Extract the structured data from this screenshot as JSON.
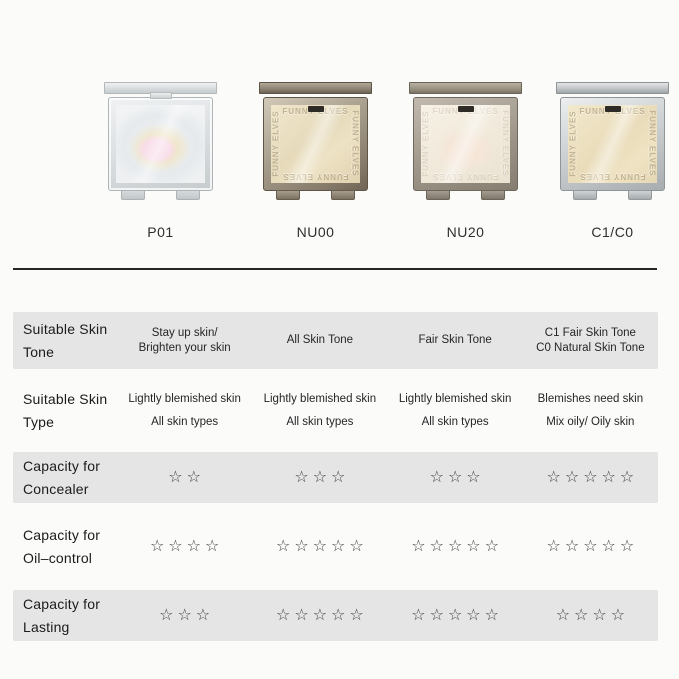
{
  "page": {
    "background": "#fbfbfa"
  },
  "colors": {
    "row_shade": "#e5e5e6",
    "divider": "#262626",
    "star": "#3f3f3f",
    "label_text": "#1b1b1b",
    "cell_text": "#262626",
    "product_label_text": "#2e2e2e"
  },
  "products": [
    {
      "label": "P01",
      "variant": "p01",
      "emboss_text": ""
    },
    {
      "label": "NU00",
      "variant": "nu00",
      "emboss_text": "FUNNY ELVES"
    },
    {
      "label": "NU20",
      "variant": "nu20",
      "emboss_text": "FUNNY ELVES"
    },
    {
      "label": "C1/C0",
      "variant": "c1c0",
      "emboss_text": "FUNNY ELVES"
    }
  ],
  "rating": {
    "star_glyph": "☆",
    "max_stars": 5
  },
  "table": {
    "rows": [
      {
        "label": [
          "Suitable Skin",
          "Tone"
        ],
        "shaded": true,
        "kind": "text",
        "density": "tight",
        "cells": [
          [
            "Stay up skin/",
            "Brighten your skin"
          ],
          [
            "All Skin Tone"
          ],
          [
            "Fair Skin Tone"
          ],
          [
            "C1 Fair Skin Tone",
            "C0 Natural Skin Tone"
          ]
        ]
      },
      {
        "label": [
          "Suitable Skin",
          "Type"
        ],
        "shaded": false,
        "kind": "text",
        "density": "loose",
        "cells": [
          [
            "Lightly blemished skin",
            "All skin types"
          ],
          [
            "Lightly blemished skin",
            "All skin types"
          ],
          [
            "Lightly blemished skin",
            "All skin types"
          ],
          [
            "Blemishes need skin",
            "Mix oily/ Oily skin"
          ]
        ]
      },
      {
        "label": [
          "Capacity for",
          "Concealer"
        ],
        "shaded": true,
        "kind": "stars",
        "stars": [
          2,
          3,
          3,
          5
        ]
      },
      {
        "label": [
          "Capacity for",
          "Oil–control"
        ],
        "shaded": false,
        "kind": "stars",
        "stars": [
          4,
          5,
          5,
          5
        ]
      },
      {
        "label": [
          "Capacity for",
          "Lasting"
        ],
        "shaded": true,
        "kind": "stars",
        "stars": [
          3,
          5,
          5,
          4
        ]
      }
    ]
  },
  "chart_data": {
    "type": "table",
    "title": "",
    "columns": [
      "P01",
      "NU00",
      "NU20",
      "C1/C0"
    ],
    "rows": [
      {
        "label": "Suitable Skin Tone",
        "values": [
          "Stay up skin/ Brighten your skin",
          "All Skin Tone",
          "Fair Skin Tone",
          "C1 Fair Skin Tone; C0 Natural Skin Tone"
        ]
      },
      {
        "label": "Suitable Skin Type",
        "values": [
          "Lightly blemished skin; All skin types",
          "Lightly blemished skin; All skin types",
          "Lightly blemished skin; All skin types",
          "Blemishes need skin; Mix oily/ Oily skin"
        ]
      },
      {
        "label": "Capacity for Concealer (stars, max 5)",
        "values": [
          2,
          3,
          3,
          5
        ]
      },
      {
        "label": "Capacity for Oil–control (stars, max 5)",
        "values": [
          4,
          5,
          5,
          5
        ]
      },
      {
        "label": "Capacity for Lasting (stars, max 5)",
        "values": [
          3,
          5,
          5,
          4
        ]
      }
    ]
  }
}
